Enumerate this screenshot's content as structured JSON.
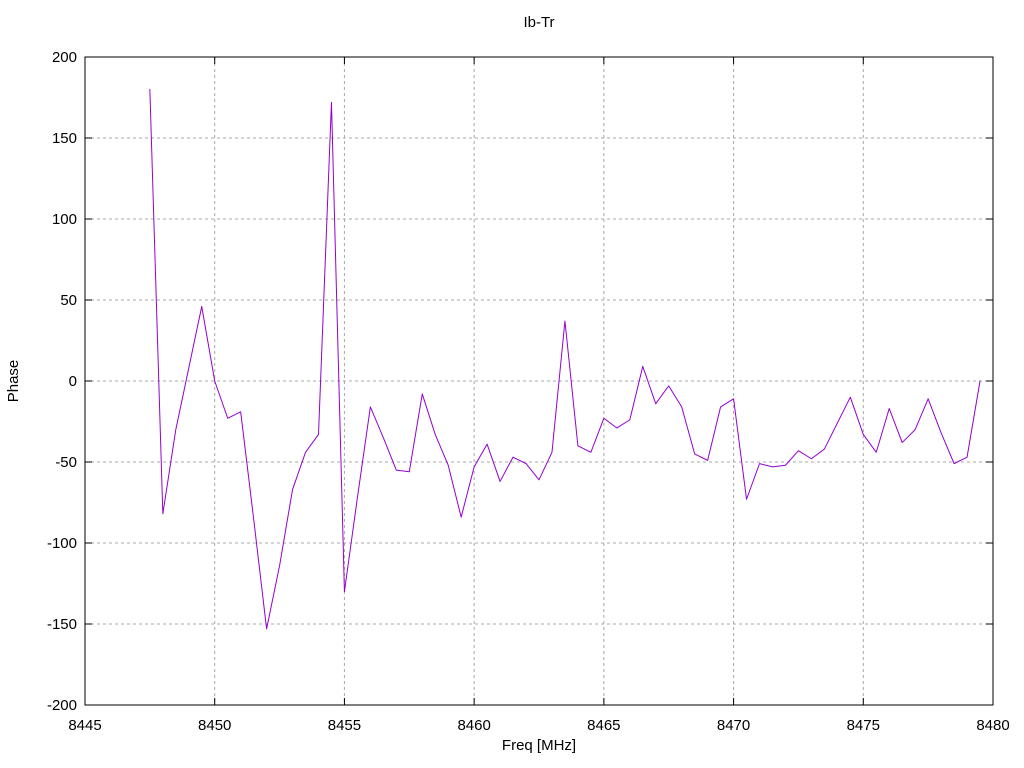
{
  "chart": {
    "title": "Ib-Tr",
    "xlabel": "Freq [MHz]",
    "ylabel": "Phase"
  },
  "chart_data": {
    "type": "line",
    "title": "Ib-Tr",
    "xlabel": "Freq [MHz]",
    "ylabel": "Phase",
    "xlim": [
      8445,
      8480
    ],
    "ylim": [
      -200,
      200
    ],
    "x_ticks": [
      8445,
      8450,
      8455,
      8460,
      8465,
      8470,
      8475,
      8480
    ],
    "y_ticks": [
      -200,
      -150,
      -100,
      -50,
      0,
      50,
      100,
      150,
      200
    ],
    "grid": true,
    "legend": false,
    "line_color": "#9400d3",
    "grid_color": "#a8a8a8",
    "border_color": "#000000",
    "background_color": "#ffffff",
    "series": [
      {
        "name": "Ib-Tr",
        "x": [
          8447.5,
          8448,
          8448.5,
          8449,
          8449.5,
          8450,
          8450.5,
          8451,
          8451.5,
          8452,
          8452.5,
          8453,
          8453.5,
          8454,
          8454.5,
          8455,
          8455.5,
          8456,
          8456.5,
          8457,
          8457.5,
          8458,
          8458.5,
          8459,
          8459.5,
          8460,
          8460.5,
          8461,
          8461.5,
          8462,
          8462.5,
          8463,
          8463.5,
          8464,
          8464.5,
          8465,
          8465.5,
          8466,
          8466.5,
          8467,
          8467.5,
          8468,
          8468.5,
          8469,
          8469.5,
          8470,
          8470.5,
          8471,
          8471.5,
          8472,
          8472.5,
          8473,
          8473.5,
          8474,
          8474.5,
          8475,
          8475.5,
          8476,
          8476.5,
          8477,
          8477.5,
          8478,
          8478.5,
          8479,
          8479.5
        ],
        "values": [
          180,
          -82,
          -30,
          8,
          46,
          0,
          -23,
          -19,
          -85,
          -153,
          -114,
          -67,
          -44,
          -33,
          172,
          -130,
          -72,
          -16,
          -35,
          -55,
          -56,
          -8,
          -33,
          -52,
          -84,
          -53,
          -39,
          -62,
          -47,
          -51,
          -61,
          -44,
          37,
          -40,
          -44,
          -23,
          -29,
          -24,
          9,
          -14,
          -3,
          -16,
          -45,
          -49,
          -16,
          -11,
          -73,
          -51,
          -53,
          -52,
          -43,
          -48,
          -42,
          -26,
          -10,
          -33,
          -44,
          -17,
          -38,
          -30,
          -11,
          -32,
          -51,
          -47,
          0
        ]
      }
    ]
  }
}
